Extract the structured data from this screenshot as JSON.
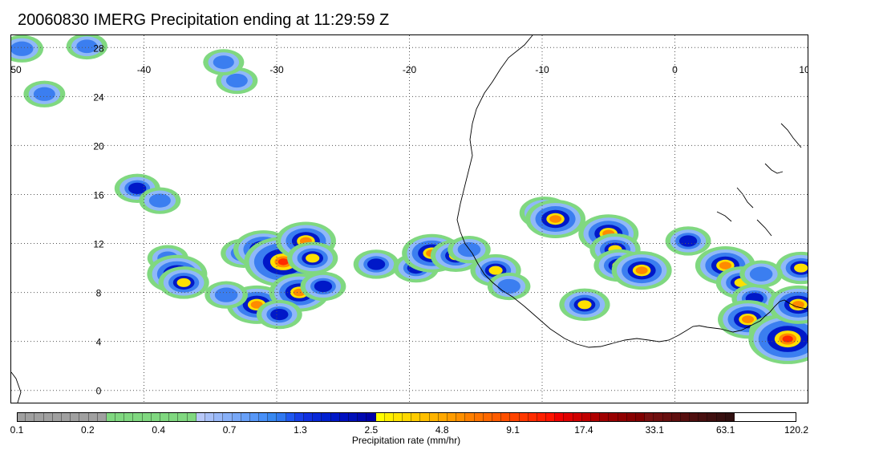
{
  "title": "20060830 IMERG Precipitation ending at 11:29:59 Z",
  "map": {
    "lon_range": [
      -50,
      10
    ],
    "lat_range": [
      -1,
      29
    ],
    "lon_ticks": [
      "-50",
      "-40",
      "-30",
      "-20",
      "-10",
      "0",
      "10"
    ],
    "lat_ticks": [
      "28",
      "24",
      "20",
      "16",
      "12",
      "8",
      "4",
      "0"
    ],
    "grid": "dotted"
  },
  "colorbar": {
    "title": "Precipitation rate (mm/hr)",
    "labels": [
      "0.1",
      "0.2",
      "0.4",
      "0.7",
      "1.3",
      "2.5",
      "4.8",
      "9.1",
      "17.4",
      "33.1",
      "63.1",
      "120.2"
    ],
    "colors": [
      "#a0a0a0",
      "#a0a0a0",
      "#a0a0a0",
      "#a0a0a0",
      "#a0a0a0",
      "#a0a0a0",
      "#a0a0a0",
      "#a0a0a0",
      "#a0a0a0",
      "#a0a0a0",
      "#80d880",
      "#80d880",
      "#80d880",
      "#80d880",
      "#80d880",
      "#80d880",
      "#80d880",
      "#80d880",
      "#80d880",
      "#80d880",
      "#b8c8f8",
      "#a8c0f8",
      "#98b8f8",
      "#88b0f8",
      "#78a8f8",
      "#68a0f8",
      "#5898f8",
      "#4890f8",
      "#3888f0",
      "#3078f0",
      "#2058f0",
      "#1840e8",
      "#1030e0",
      "#0828d8",
      "#0020d0",
      "#0018c8",
      "#0010c0",
      "#0010b8",
      "#0008b0",
      "#0000a8",
      "#ffff00",
      "#fff000",
      "#ffe400",
      "#ffd800",
      "#ffcc00",
      "#ffc000",
      "#ffb400",
      "#ffa800",
      "#ff9c00",
      "#ff9000",
      "#ff8000",
      "#ff7400",
      "#ff6800",
      "#ff5c00",
      "#ff5000",
      "#ff4400",
      "#ff3800",
      "#ff2c00",
      "#ff2000",
      "#ff1400",
      "#f00000",
      "#e00000",
      "#d00000",
      "#c00000",
      "#b00000",
      "#a00000",
      "#980000",
      "#900000",
      "#880000",
      "#800000",
      "#781010",
      "#701010",
      "#681010",
      "#601010",
      "#581010",
      "#501010",
      "#481010",
      "#401010",
      "#381010",
      "#301010"
    ]
  },
  "rain_cells": [
    {
      "lon": -49.2,
      "lat": 27.9,
      "value": 1.3
    },
    {
      "lon": -47.5,
      "lat": 24.2,
      "value": 0.7
    },
    {
      "lon": -44.3,
      "lat": 28.1,
      "value": 0.4
    },
    {
      "lon": -40.5,
      "lat": 16.5,
      "value": 2.5
    },
    {
      "lon": -38.8,
      "lat": 15.5,
      "value": 0.7
    },
    {
      "lon": -38.2,
      "lat": 10.8,
      "value": 0.4
    },
    {
      "lon": -37.5,
      "lat": 9.5,
      "value": 9.1
    },
    {
      "lon": -37.0,
      "lat": 8.8,
      "value": 4.8
    },
    {
      "lon": -33.0,
      "lat": 25.3,
      "value": 0.7
    },
    {
      "lon": -34.0,
      "lat": 26.8,
      "value": 0.4
    },
    {
      "lon": -32.5,
      "lat": 11.2,
      "value": 2.5
    },
    {
      "lon": -31.0,
      "lat": 11.5,
      "value": 9.1
    },
    {
      "lon": -29.5,
      "lat": 10.5,
      "value": 17.4
    },
    {
      "lon": -27.8,
      "lat": 12.2,
      "value": 9.1
    },
    {
      "lon": -27.3,
      "lat": 10.8,
      "value": 4.8
    },
    {
      "lon": -31.5,
      "lat": 7.0,
      "value": 9.1
    },
    {
      "lon": -28.3,
      "lat": 8.0,
      "value": 9.1
    },
    {
      "lon": -29.8,
      "lat": 6.2,
      "value": 2.5
    },
    {
      "lon": -33.8,
      "lat": 7.8,
      "value": 1.3
    },
    {
      "lon": -26.5,
      "lat": 8.5,
      "value": 2.5
    },
    {
      "lon": -22.5,
      "lat": 10.3,
      "value": 2.5
    },
    {
      "lon": -19.5,
      "lat": 10.0,
      "value": 2.5
    },
    {
      "lon": -18.3,
      "lat": 11.2,
      "value": 9.1
    },
    {
      "lon": -16.5,
      "lat": 11.0,
      "value": 4.8
    },
    {
      "lon": -15.5,
      "lat": 11.5,
      "value": 1.3
    },
    {
      "lon": -13.5,
      "lat": 9.8,
      "value": 4.8
    },
    {
      "lon": -12.5,
      "lat": 8.5,
      "value": 1.3
    },
    {
      "lon": -9.8,
      "lat": 14.5,
      "value": 4.8
    },
    {
      "lon": -9.0,
      "lat": 14.0,
      "value": 9.1
    },
    {
      "lon": -5.0,
      "lat": 12.8,
      "value": 9.1
    },
    {
      "lon": -4.5,
      "lat": 11.5,
      "value": 4.8
    },
    {
      "lon": -4.2,
      "lat": 10.2,
      "value": 4.8
    },
    {
      "lon": -2.5,
      "lat": 9.8,
      "value": 9.1
    },
    {
      "lon": -6.8,
      "lat": 7.0,
      "value": 4.8
    },
    {
      "lon": 1.0,
      "lat": 12.2,
      "value": 2.5
    },
    {
      "lon": 3.8,
      "lat": 10.2,
      "value": 9.1
    },
    {
      "lon": 5.0,
      "lat": 8.8,
      "value": 4.8
    },
    {
      "lon": 6.0,
      "lat": 7.5,
      "value": 2.5
    },
    {
      "lon": 5.5,
      "lat": 5.8,
      "value": 9.1
    },
    {
      "lon": 7.5,
      "lat": 4.8,
      "value": 4.8
    },
    {
      "lon": 8.5,
      "lat": 4.2,
      "value": 17.4
    },
    {
      "lon": 9.3,
      "lat": 7.0,
      "value": 9.1
    },
    {
      "lon": 9.5,
      "lat": 10.0,
      "value": 4.8
    },
    {
      "lon": 6.5,
      "lat": 9.5,
      "value": 1.3
    }
  ]
}
